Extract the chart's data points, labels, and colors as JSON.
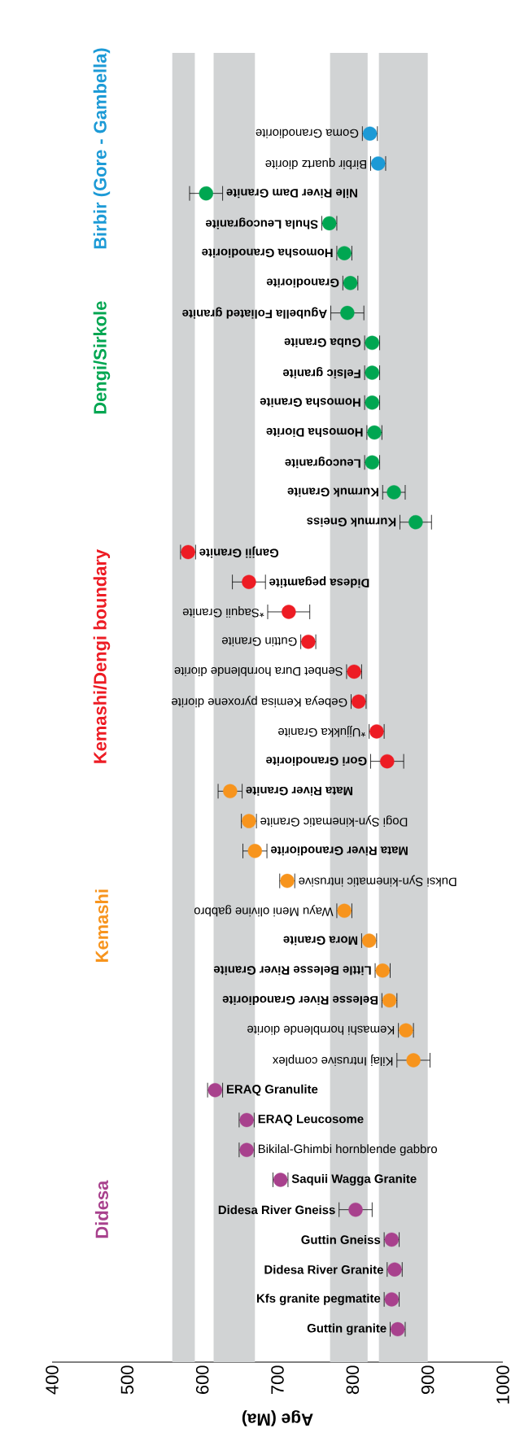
{
  "chart_data": {
    "type": "scatter",
    "orientation": "horizontal",
    "xlabel": "Age (Ma)",
    "xlim": [
      400,
      1000
    ],
    "xticks": [
      400,
      500,
      600,
      700,
      800,
      900,
      1000
    ],
    "marker": "circle",
    "categories": [
      "Goma Granodiorite",
      "Birbir quartz diorite",
      "Nile River Dam Granite",
      "Shula Leucogranite",
      "Homosha Granodiorite",
      "Granodiorite",
      "Agubella Foliated granite",
      "Guba Granite",
      "Felsic granite",
      "Homosha Granite",
      "Homosha Diorite",
      "Leucogranite",
      "Kurmuk Granite",
      "Kurmuk Gneiss",
      "Ganjii Granite",
      "Didesa pegamtite",
      "*Saquii Granite",
      "Guttin Granite",
      "Senbet Dura hornblende diorite",
      "Gebeya Kemisa pyroxene diorite",
      "*Ujjukka Granite",
      "Gori Granodiorite",
      "Mata River Granite",
      "Dogi Syn-kinematic Granite",
      "Mata River Granodiorite",
      "Duksi Syn-kinematic intrusive",
      "Wayu Meni olivine gabbro",
      "Mora Granite",
      "Little Belesse River Granite",
      "Belesse River Granodiorite",
      "Kemashi hornblende diorite",
      "Kilaj Intrusive complex",
      "ERAQ Granulite",
      "ERAQ Leucosome",
      "Bikilal-Ghimbi hornblende gabbro",
      "Saquii Wagga Granite",
      "Didesa River Gneiss",
      "Guttin Gneiss",
      "Didesa River Granite",
      "Kfs granite pegmatite",
      "Guttin granite"
    ],
    "series": [
      {
        "name": "Birbir (Gore - Gambella)",
        "color": "#1c9ad6",
        "values": [
          823,
          834,
          null,
          null,
          null,
          null,
          null,
          null,
          null,
          null,
          null,
          null,
          null,
          null,
          null,
          null,
          null,
          null,
          null,
          null,
          null,
          null,
          null,
          null,
          null,
          null,
          null,
          null,
          null,
          null,
          null,
          null,
          null,
          null,
          null,
          null,
          null,
          null,
          null,
          null,
          null
        ],
        "errors": [
          10,
          10,
          null,
          null,
          null,
          null,
          null,
          null,
          null,
          null,
          null,
          null,
          null,
          null,
          null,
          null,
          null,
          null,
          null,
          null,
          null,
          null,
          null,
          null,
          null,
          null,
          null,
          null,
          null,
          null,
          null,
          null,
          null,
          null,
          null,
          null,
          null,
          null,
          null,
          null,
          null
        ]
      },
      {
        "name": "Dengi/Sirkole",
        "color": "#00a651",
        "values": [
          null,
          null,
          605,
          769,
          789,
          797,
          793,
          826,
          826,
          826,
          829,
          826,
          855,
          884,
          null,
          null,
          null,
          null,
          null,
          null,
          null,
          null,
          null,
          null,
          null,
          null,
          null,
          null,
          null,
          null,
          null,
          null,
          null,
          null,
          null,
          null,
          null,
          null,
          null,
          null,
          null
        ],
        "errors": [
          null,
          null,
          22,
          10,
          10,
          10,
          22,
          10,
          10,
          10,
          10,
          10,
          15,
          21,
          null,
          null,
          null,
          null,
          null,
          null,
          null,
          null,
          null,
          null,
          null,
          null,
          null,
          null,
          null,
          null,
          null,
          null,
          null,
          null,
          null,
          null,
          null,
          null,
          null,
          null,
          null
        ]
      },
      {
        "name": "Kemashi/Dengi boundary",
        "color": "#ed1c24",
        "values": [
          null,
          null,
          null,
          null,
          null,
          null,
          null,
          null,
          null,
          null,
          null,
          null,
          null,
          null,
          581,
          662,
          715,
          741,
          802,
          808,
          832,
          846,
          null,
          null,
          null,
          null,
          null,
          null,
          null,
          null,
          null,
          null,
          null,
          null,
          null,
          null,
          null,
          null,
          null,
          null,
          null
        ],
        "errors": [
          null,
          null,
          null,
          null,
          null,
          null,
          null,
          null,
          null,
          null,
          null,
          null,
          null,
          null,
          10,
          22,
          28,
          10,
          10,
          10,
          10,
          22,
          null,
          null,
          null,
          null,
          null,
          null,
          null,
          null,
          null,
          null,
          null,
          null,
          null,
          null,
          null,
          null,
          null,
          null,
          null
        ]
      },
      {
        "name": "Kemashi",
        "color": "#f7941d",
        "values": [
          null,
          null,
          null,
          null,
          null,
          null,
          null,
          null,
          null,
          null,
          null,
          null,
          null,
          null,
          null,
          null,
          null,
          null,
          null,
          null,
          null,
          null,
          637,
          662,
          670,
          713,
          789,
          822,
          840,
          849,
          871,
          881,
          null,
          null,
          null,
          null,
          null,
          null,
          null,
          null,
          null
        ],
        "errors": [
          null,
          null,
          null,
          null,
          null,
          null,
          null,
          null,
          null,
          null,
          null,
          null,
          null,
          null,
          null,
          null,
          null,
          null,
          null,
          null,
          null,
          null,
          16,
          10,
          16,
          10,
          10,
          10,
          10,
          10,
          10,
          22,
          null,
          null,
          null,
          null,
          null,
          null,
          null,
          null,
          null
        ]
      },
      {
        "name": "Didesa",
        "color": "#a8418d",
        "values": [
          null,
          null,
          null,
          null,
          null,
          null,
          null,
          null,
          null,
          null,
          null,
          null,
          null,
          null,
          null,
          null,
          null,
          null,
          null,
          null,
          null,
          null,
          null,
          null,
          null,
          null,
          null,
          null,
          null,
          null,
          null,
          null,
          617,
          659,
          659,
          704,
          804,
          852,
          856,
          852,
          860
        ],
        "errors": [
          null,
          null,
          null,
          null,
          null,
          null,
          null,
          null,
          null,
          null,
          null,
          null,
          null,
          null,
          null,
          null,
          null,
          null,
          null,
          null,
          null,
          null,
          null,
          null,
          null,
          null,
          null,
          null,
          null,
          null,
          null,
          null,
          10,
          10,
          10,
          10,
          22,
          10,
          10,
          10,
          10
        ]
      }
    ],
    "bands": [
      {
        "axis": "x",
        "from": 560,
        "to": 590,
        "color": "#d1d3d4"
      },
      {
        "axis": "x",
        "from": 615,
        "to": 670,
        "color": "#d1d3d4"
      },
      {
        "axis": "x",
        "from": 770,
        "to": 820,
        "color": "#d1d3d4"
      },
      {
        "axis": "x",
        "from": 835,
        "to": 900,
        "color": "#d1d3d4"
      }
    ]
  }
}
